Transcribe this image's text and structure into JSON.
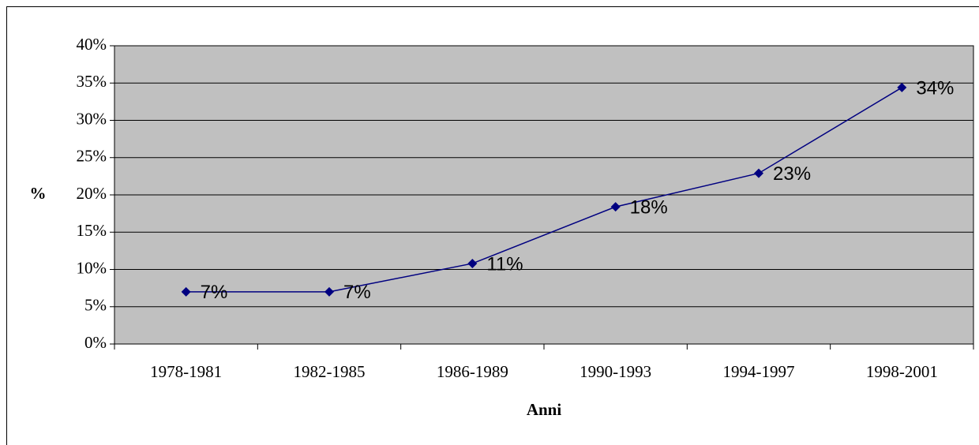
{
  "chart_data": {
    "type": "line",
    "x_label": "Anni",
    "y_label": "%",
    "categories": [
      "1978-1981",
      "1982-1985",
      "1986-1989",
      "1990-1993",
      "1994-1997",
      "1998-2001"
    ],
    "series": [
      {
        "name": "%",
        "color": "#000080",
        "values": [
          7.0,
          7.0,
          10.8,
          18.4,
          22.9,
          34.4
        ],
        "value_labels": [
          "7%",
          "7%",
          "11%",
          "18%",
          "23%",
          "34%"
        ]
      }
    ],
    "ylim": [
      0,
      40
    ],
    "yticks": [
      {
        "value": 0,
        "label": "0%"
      },
      {
        "value": 5,
        "label": "5%"
      },
      {
        "value": 10,
        "label": "10%"
      },
      {
        "value": 15,
        "label": "15%"
      },
      {
        "value": 20,
        "label": "20%"
      },
      {
        "value": 25,
        "label": "25%"
      },
      {
        "value": 30,
        "label": "30%"
      },
      {
        "value": 35,
        "label": "35%"
      },
      {
        "value": 40,
        "label": "40%"
      }
    ],
    "grid": true,
    "plot_background": "#c0c0c0"
  }
}
